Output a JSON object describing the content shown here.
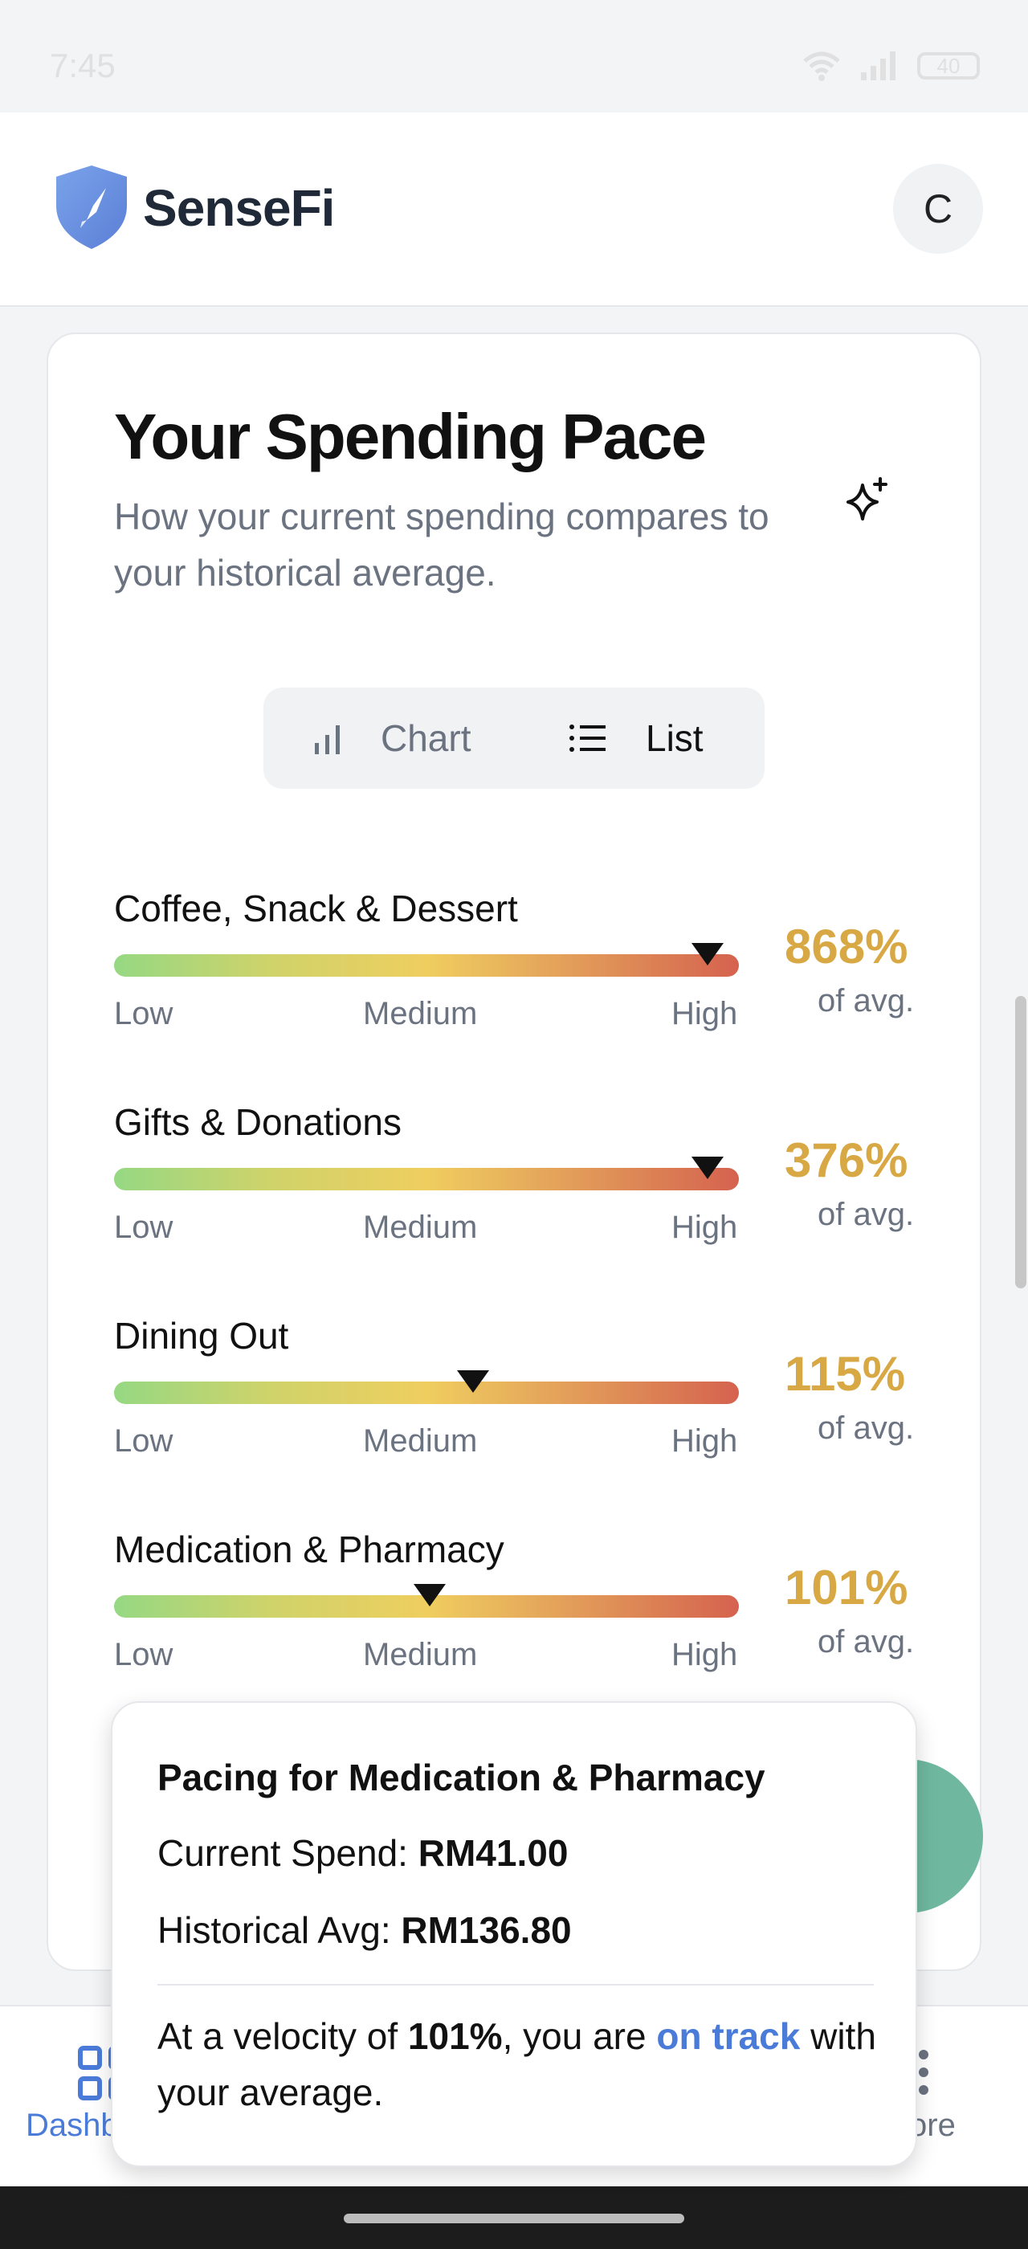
{
  "status_bar": {
    "time": "7:45",
    "battery": "40"
  },
  "header": {
    "brand": "SenseFi",
    "avatar_initial": "C"
  },
  "card": {
    "title": "Your Spending Pace",
    "subtitle": "How your current spending compares to your historical average.",
    "view_toggle": {
      "chart_label": "Chart",
      "list_label": "List",
      "selected": "List"
    }
  },
  "levels": {
    "low": "Low",
    "medium": "Medium",
    "high": "High"
  },
  "of_avg": "of avg.",
  "rows": [
    {
      "label": "Coffee, Snack & Dessert",
      "percent": "868%",
      "marker_fraction": 0.95
    },
    {
      "label": "Gifts & Donations",
      "percent": "376%",
      "marker_fraction": 0.95
    },
    {
      "label": "Dining Out",
      "percent": "115%",
      "marker_fraction": 0.575
    },
    {
      "label": "Medication & Pharmacy",
      "percent": "101%",
      "marker_fraction": 0.505
    }
  ],
  "tooltip": {
    "title": "Pacing for Medication & Pharmacy",
    "current_label": "Current Spend:",
    "current_value": "RM41.00",
    "historical_label": "Historical Avg:",
    "historical_value": "RM136.80",
    "msg_prefix": "At a velocity of",
    "msg_velocity": "101%",
    "msg_middle": ", you are",
    "msg_status": "on track",
    "msg_suffix": "with your average."
  },
  "bottom_nav": {
    "dashboard_label": "Dashb",
    "more_label": "ore"
  },
  "colors": {
    "accent": "#4a7bd8",
    "percent": "#d8a845",
    "fab": "#6fb89f"
  }
}
